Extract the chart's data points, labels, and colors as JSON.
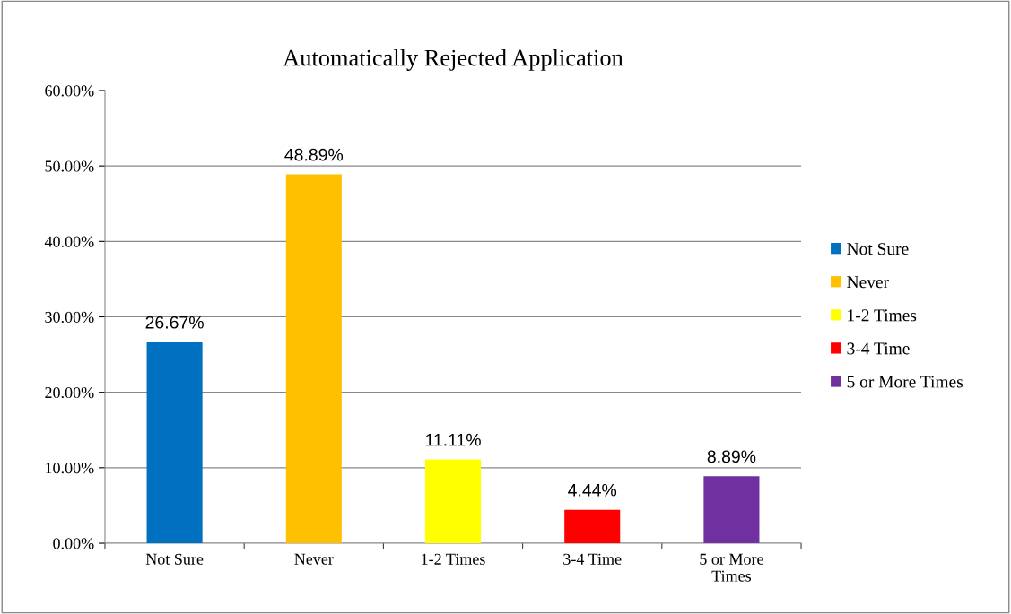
{
  "chart_data": {
    "type": "bar",
    "title": "Automatically Rejected Application",
    "categories": [
      "Not Sure",
      "Never",
      "1-2 Times",
      "3-4 Time",
      "5 or More Times"
    ],
    "series": [
      {
        "name": "Not Sure",
        "color": "#0070c0",
        "values": [
          26.67,
          null,
          null,
          null,
          null
        ],
        "value_labels": [
          "26.67%",
          null,
          null,
          null,
          null
        ]
      },
      {
        "name": "Never",
        "color": "#ffc000",
        "values": [
          null,
          48.89,
          null,
          null,
          null
        ],
        "value_labels": [
          null,
          "48.89%",
          null,
          null,
          null
        ]
      },
      {
        "name": "1-2 Times",
        "color": "#ffff00",
        "values": [
          null,
          null,
          11.11,
          null,
          null
        ],
        "value_labels": [
          null,
          null,
          "11.11%",
          null,
          null
        ]
      },
      {
        "name": "3-4 Time",
        "color": "#ff0000",
        "values": [
          null,
          null,
          null,
          4.44,
          null
        ],
        "value_labels": [
          null,
          null,
          null,
          "4.44%",
          null
        ]
      },
      {
        "name": "5 or More Times",
        "color": "#7030a0",
        "values": [
          null,
          null,
          null,
          null,
          8.89
        ],
        "value_labels": [
          null,
          null,
          null,
          null,
          "8.89%"
        ]
      }
    ],
    "ylim": [
      0,
      60
    ],
    "yticks": [
      {
        "value": 0,
        "label": "0.00%"
      },
      {
        "value": 10,
        "label": "10.00%"
      },
      {
        "value": 20,
        "label": "20.00%"
      },
      {
        "value": 30,
        "label": "30.00%"
      },
      {
        "value": 40,
        "label": "40.00%"
      },
      {
        "value": 50,
        "label": "50.00%"
      },
      {
        "value": 60,
        "label": "60.00%"
      }
    ],
    "grid": "y",
    "legend": "right"
  }
}
